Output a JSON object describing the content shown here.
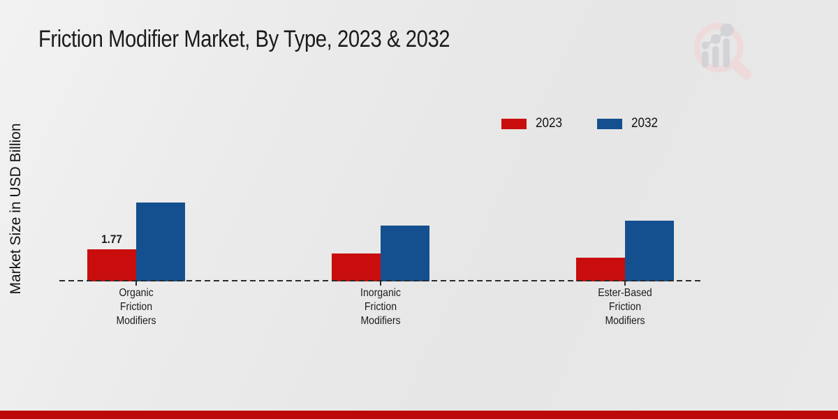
{
  "chart_data": {
    "type": "bar",
    "title": "Friction Modifier Market, By Type, 2023 & 2032",
    "xlabel": "",
    "ylabel": "Market Size in USD Billion",
    "categories": [
      "Organic Friction Modifiers",
      "Inorganic Friction Modifiers",
      "Ester-Based Friction Modifiers"
    ],
    "series": [
      {
        "name": "2023",
        "color": "#c90d0d",
        "values": [
          1.77,
          1.54,
          1.31
        ]
      },
      {
        "name": "2032",
        "color": "#14508f",
        "values": [
          4.35,
          3.08,
          3.35
        ]
      }
    ],
    "data_labels": [
      {
        "series": "2023",
        "category_index": 0,
        "text": "1.77"
      }
    ],
    "ylim": [
      0,
      5
    ],
    "grid": false,
    "axis_line_style": "dashed-baseline-only",
    "legend_position": "top-right"
  },
  "icons": {
    "watermark": "magnifier-bar-chart-logo"
  },
  "colors": {
    "background": "#e9e9e9",
    "title_text": "#1b1b1b",
    "bar_2023": "#c90d0d",
    "bar_2032": "#14508f",
    "baseline": "#2b2b2b",
    "bottom_strip": "#bc0909",
    "watermark_pink": "#eedada",
    "watermark_grey": "#d3d3d7"
  }
}
